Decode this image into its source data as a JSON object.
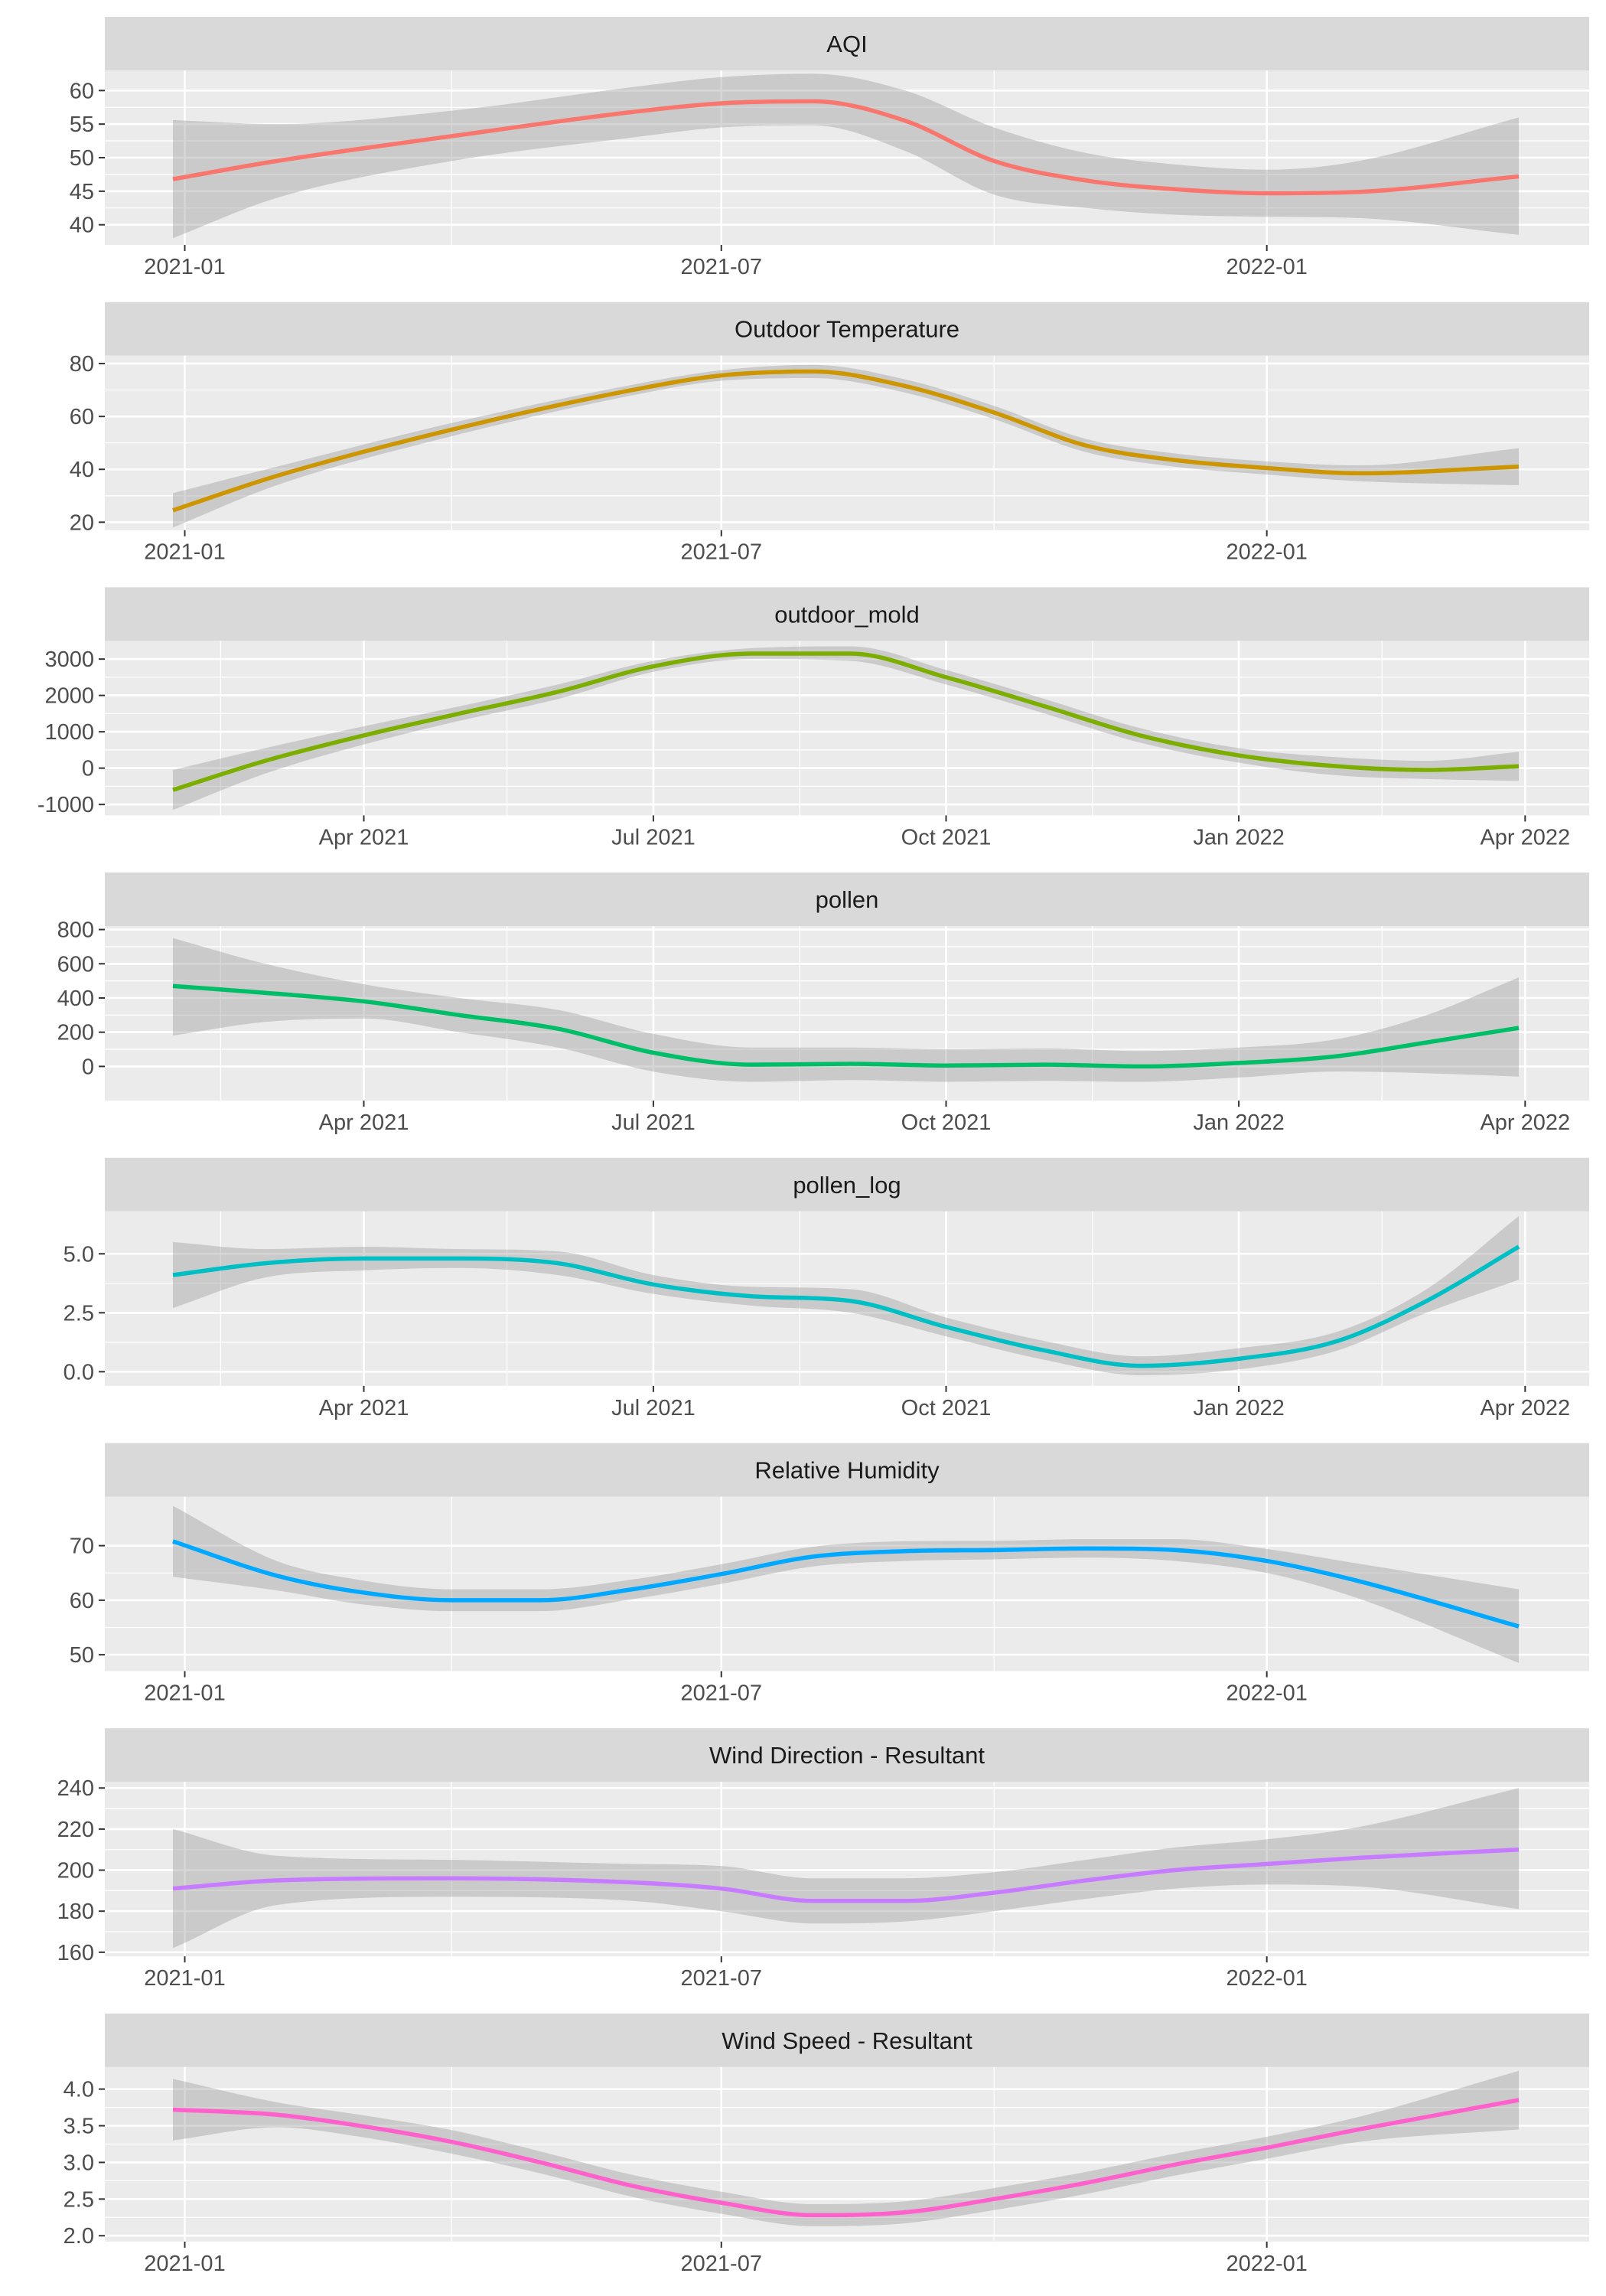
{
  "chart_data": {
    "type": "line",
    "facet_layout": "single column, free scales",
    "grid": true,
    "legend": "none",
    "panels": [
      {
        "title": "AQI",
        "color": "#F8766D",
        "x_axis": "dates",
        "x_ticks": [
          {
            "value": "2021-01-01",
            "label": "2021-01"
          },
          {
            "value": "2021-07-01",
            "label": "2021-07"
          },
          {
            "value": "2022-01-01",
            "label": "2022-01"
          }
        ],
        "x_minor_ticks": [
          "2021-04-01",
          "2021-10-01"
        ],
        "y_ticks": [
          40,
          45,
          50,
          55,
          60
        ],
        "ylim": [
          37,
          63
        ],
        "series": [
          {
            "x": [
              "2020-12-28",
              "2021-02-01",
              "2021-04-01",
              "2021-06-01",
              "2021-07-01",
              "2021-08-01",
              "2021-09-01",
              "2021-10-01",
              "2021-11-01",
              "2021-12-01",
              "2022-01-01",
              "2022-02-01",
              "2022-03-27"
            ],
            "y": [
              46.8,
              49.5,
              53.2,
              56.8,
              58.1,
              58.4,
              55.5,
              49.5,
              46.6,
              45.3,
              44.7,
              44.9,
              47.2
            ],
            "lower": [
              38.0,
              44.0,
              49.5,
              53.0,
              54.5,
              54.8,
              51.0,
              44.5,
              42.5,
              41.5,
              41.2,
              41.0,
              38.5
            ],
            "upper": [
              55.6,
              55.0,
              57.0,
              60.5,
              62.0,
              62.5,
              60.0,
              54.5,
              50.7,
              49.0,
              48.2,
              49.5,
              56.0
            ]
          }
        ]
      },
      {
        "title": "Outdoor Temperature",
        "color": "#CD9600",
        "x_axis": "dates",
        "x_ticks": [
          {
            "value": "2021-01-01",
            "label": "2021-01"
          },
          {
            "value": "2021-07-01",
            "label": "2021-07"
          },
          {
            "value": "2022-01-01",
            "label": "2022-01"
          }
        ],
        "x_minor_ticks": [
          "2021-04-01",
          "2021-10-01"
        ],
        "y_ticks": [
          20,
          40,
          60,
          80
        ],
        "ylim": [
          17,
          83
        ],
        "series": [
          {
            "x": [
              "2020-12-28",
              "2021-02-01",
              "2021-04-01",
              "2021-06-01",
              "2021-07-01",
              "2021-08-01",
              "2021-09-01",
              "2021-10-01",
              "2021-11-01",
              "2021-12-01",
              "2022-01-01",
              "2022-02-01",
              "2022-03-27"
            ],
            "y": [
              24.5,
              37.5,
              55.0,
              70.0,
              75.5,
              77.0,
              71.5,
              61.5,
              49.0,
              43.5,
              40.5,
              38.5,
              41.0
            ],
            "lower": [
              18.0,
              34.0,
              52.5,
              68.0,
              73.5,
              74.5,
              69.0,
              59.0,
              46.5,
              41.0,
              38.0,
              35.5,
              34.0
            ],
            "upper": [
              31.0,
              41.0,
              57.5,
              72.0,
              77.5,
              79.5,
              74.0,
              64.0,
              51.5,
              46.0,
              43.0,
              41.5,
              48.0
            ]
          }
        ]
      },
      {
        "title": "outdoor_mold",
        "color": "#7CAE00",
        "x_axis": "dates",
        "x_ticks": [
          {
            "value": "2021-04-01",
            "label": "Apr 2021"
          },
          {
            "value": "2021-07-01",
            "label": "Jul 2021"
          },
          {
            "value": "2021-10-01",
            "label": "Oct 2021"
          },
          {
            "value": "2022-01-01",
            "label": "Jan 2022"
          },
          {
            "value": "2022-04-01",
            "label": "Apr 2022"
          }
        ],
        "x_minor_ticks": [
          "2021-02-15",
          "2021-05-16",
          "2021-08-16",
          "2021-11-16",
          "2022-02-15"
        ],
        "y_ticks": [
          -1000,
          0,
          1000,
          2000,
          3000
        ],
        "ylim": [
          -1300,
          3500
        ],
        "series": [
          {
            "x": [
              "2021-01-31",
              "2021-03-01",
              "2021-04-01",
              "2021-05-01",
              "2021-06-01",
              "2021-07-01",
              "2021-08-01",
              "2021-09-01",
              "2021-10-01",
              "2021-11-01",
              "2021-12-01",
              "2022-01-01",
              "2022-02-01",
              "2022-03-01",
              "2022-03-30"
            ],
            "y": [
              -600,
              200,
              900,
              1500,
              2100,
              2800,
              3150,
              3150,
              2500,
              1700,
              900,
              350,
              50,
              -50,
              50
            ],
            "lower": [
              -1150,
              -150,
              650,
              1300,
              1900,
              2650,
              3000,
              2950,
              2300,
              1500,
              700,
              150,
              -200,
              -300,
              -350
            ],
            "upper": [
              -50,
              550,
              1150,
              1700,
              2300,
              2950,
              3300,
              3350,
              2700,
              1900,
              1100,
              550,
              300,
              200,
              450
            ]
          }
        ]
      },
      {
        "title": "pollen",
        "color": "#00BE67",
        "x_axis": "dates",
        "x_ticks": [
          {
            "value": "2021-04-01",
            "label": "Apr 2021"
          },
          {
            "value": "2021-07-01",
            "label": "Jul 2021"
          },
          {
            "value": "2021-10-01",
            "label": "Oct 2021"
          },
          {
            "value": "2022-01-01",
            "label": "Jan 2022"
          },
          {
            "value": "2022-04-01",
            "label": "Apr 2022"
          }
        ],
        "x_minor_ticks": [
          "2021-02-15",
          "2021-05-16",
          "2021-08-16",
          "2021-11-16",
          "2022-02-15"
        ],
        "y_ticks": [
          0,
          200,
          400,
          600,
          800
        ],
        "ylim": [
          -200,
          820
        ],
        "series": [
          {
            "x": [
              "2021-01-31",
              "2021-03-01",
              "2021-04-01",
              "2021-05-01",
              "2021-06-01",
              "2021-07-01",
              "2021-08-01",
              "2021-09-01",
              "2021-10-01",
              "2021-11-01",
              "2021-12-01",
              "2022-01-01",
              "2022-02-01",
              "2022-03-01",
              "2022-03-30"
            ],
            "y": [
              470,
              430,
              380,
              300,
              220,
              80,
              10,
              15,
              5,
              10,
              0,
              20,
              60,
              140,
              225
            ],
            "lower": [
              180,
              260,
              280,
              200,
              110,
              -30,
              -90,
              -80,
              -90,
              -85,
              -90,
              -65,
              -30,
              -40,
              -60
            ],
            "upper": [
              750,
              600,
              480,
              400,
              330,
              190,
              110,
              110,
              100,
              105,
              90,
              110,
              160,
              300,
              520
            ]
          }
        ]
      },
      {
        "title": "pollen_log",
        "color": "#00BFC4",
        "x_axis": "dates",
        "x_ticks": [
          {
            "value": "2021-04-01",
            "label": "Apr 2021"
          },
          {
            "value": "2021-07-01",
            "label": "Jul 2021"
          },
          {
            "value": "2021-10-01",
            "label": "Oct 2021"
          },
          {
            "value": "2022-01-01",
            "label": "Jan 2022"
          },
          {
            "value": "2022-04-01",
            "label": "Apr 2022"
          }
        ],
        "x_minor_ticks": [
          "2021-02-15",
          "2021-05-16",
          "2021-08-16",
          "2021-11-16",
          "2022-02-15"
        ],
        "y_ticks": [
          0.0,
          2.5,
          5.0
        ],
        "y_tick_labels": [
          "0.0",
          "2.5",
          "5.0"
        ],
        "ylim": [
          -0.6,
          6.8
        ],
        "series": [
          {
            "x": [
              "2021-01-31",
              "2021-03-01",
              "2021-04-01",
              "2021-05-01",
              "2021-06-01",
              "2021-07-01",
              "2021-08-01",
              "2021-09-01",
              "2021-10-01",
              "2021-11-01",
              "2021-12-01",
              "2022-01-01",
              "2022-02-01",
              "2022-03-01",
              "2022-03-30"
            ],
            "y": [
              4.1,
              4.6,
              4.8,
              4.8,
              4.6,
              3.7,
              3.2,
              3.0,
              1.9,
              0.9,
              0.25,
              0.55,
              1.3,
              3.0,
              5.3
            ],
            "lower": [
              2.7,
              4.0,
              4.3,
              4.4,
              4.1,
              3.3,
              2.8,
              2.5,
              1.5,
              0.5,
              -0.15,
              0.1,
              0.9,
              2.5,
              3.9
            ],
            "upper": [
              5.5,
              5.2,
              5.3,
              5.2,
              5.1,
              4.1,
              3.6,
              3.5,
              2.3,
              1.3,
              0.65,
              1.0,
              1.7,
              3.5,
              6.6
            ]
          }
        ]
      },
      {
        "title": "Relative Humidity",
        "color": "#00A9FF",
        "x_axis": "dates",
        "x_ticks": [
          {
            "value": "2021-01-01",
            "label": "2021-01"
          },
          {
            "value": "2021-07-01",
            "label": "2021-07"
          },
          {
            "value": "2022-01-01",
            "label": "2022-01"
          }
        ],
        "x_minor_ticks": [
          "2021-04-01",
          "2021-10-01"
        ],
        "y_ticks": [
          50,
          60,
          70
        ],
        "ylim": [
          47,
          79
        ],
        "series": [
          {
            "x": [
              "2020-12-28",
              "2021-02-01",
              "2021-03-01",
              "2021-04-01",
              "2021-05-01",
              "2021-06-01",
              "2021-07-01",
              "2021-08-01",
              "2021-09-01",
              "2021-10-01",
              "2021-11-01",
              "2021-12-01",
              "2022-01-01",
              "2022-02-01",
              "2022-03-27"
            ],
            "y": [
              70.8,
              64.5,
              61.5,
              60.0,
              60.0,
              62.0,
              64.8,
              68.0,
              69.0,
              69.2,
              69.5,
              69.2,
              67.2,
              63.5,
              55.2
            ],
            "lower": [
              64.3,
              61.8,
              59.3,
              58.0,
              58.0,
              60.2,
              63.0,
              66.2,
              67.2,
              67.5,
              67.8,
              67.2,
              65.0,
              60.3,
              48.5
            ],
            "upper": [
              77.3,
              67.2,
              63.7,
              62.0,
              62.0,
              63.8,
              66.6,
              69.8,
              70.8,
              70.9,
              71.2,
              71.2,
              69.4,
              66.7,
              62.0
            ]
          }
        ]
      },
      {
        "title": "Wind Direction - Resultant",
        "color": "#C77CFF",
        "x_axis": "dates",
        "x_ticks": [
          {
            "value": "2021-01-01",
            "label": "2021-01"
          },
          {
            "value": "2021-07-01",
            "label": "2021-07"
          },
          {
            "value": "2022-01-01",
            "label": "2022-01"
          }
        ],
        "x_minor_ticks": [
          "2021-04-01",
          "2021-10-01"
        ],
        "y_ticks": [
          160,
          180,
          200,
          220,
          240
        ],
        "ylim": [
          158,
          243
        ],
        "series": [
          {
            "x": [
              "2020-12-28",
              "2021-02-01",
              "2021-04-01",
              "2021-06-01",
              "2021-07-01",
              "2021-08-01",
              "2021-09-01",
              "2021-10-01",
              "2021-11-01",
              "2021-12-01",
              "2022-01-01",
              "2022-02-01",
              "2022-03-27"
            ],
            "y": [
              191,
              195,
              196,
              194,
              191,
              185,
              185,
              189,
              195,
              200,
              203,
              206,
              210
            ],
            "lower": [
              162,
              183,
              187,
              185,
              180,
              174,
              175,
              180,
              186,
              191,
              193,
              192,
              181
            ],
            "upper": [
              220,
              207,
              205,
              203,
              202,
              196,
              196,
              199,
              205,
              211,
              215,
              221,
              240
            ]
          }
        ]
      },
      {
        "title": "Wind Speed - Resultant",
        "color": "#FF61CC",
        "x_axis": "dates",
        "x_ticks": [
          {
            "value": "2021-01-01",
            "label": "2021-01"
          },
          {
            "value": "2021-07-01",
            "label": "2021-07"
          },
          {
            "value": "2022-01-01",
            "label": "2022-01"
          }
        ],
        "x_minor_ticks": [
          "2021-04-01",
          "2021-10-01"
        ],
        "y_ticks": [
          2.0,
          2.5,
          3.0,
          3.5,
          4.0
        ],
        "y_tick_labels": [
          "2.0",
          "2.5",
          "3.0",
          "3.5",
          "4.0"
        ],
        "ylim": [
          1.92,
          4.3
        ],
        "series": [
          {
            "x": [
              "2020-12-28",
              "2021-02-01",
              "2021-03-01",
              "2021-04-01",
              "2021-05-01",
              "2021-06-01",
              "2021-07-01",
              "2021-08-01",
              "2021-09-01",
              "2021-10-01",
              "2021-11-01",
              "2021-12-01",
              "2022-01-01",
              "2022-02-01",
              "2022-03-27"
            ],
            "y": [
              3.72,
              3.65,
              3.5,
              3.28,
              3.0,
              2.68,
              2.45,
              2.28,
              2.32,
              2.5,
              2.72,
              2.97,
              3.2,
              3.45,
              3.85
            ],
            "lower": [
              3.3,
              3.48,
              3.35,
              3.12,
              2.85,
              2.53,
              2.3,
              2.13,
              2.17,
              2.35,
              2.57,
              2.82,
              3.05,
              3.28,
              3.45
            ],
            "upper": [
              4.14,
              3.82,
              3.65,
              3.44,
              3.15,
              2.83,
              2.6,
              2.43,
              2.47,
              2.65,
              2.87,
              3.12,
              3.35,
              3.62,
              4.25
            ]
          }
        ]
      }
    ]
  }
}
